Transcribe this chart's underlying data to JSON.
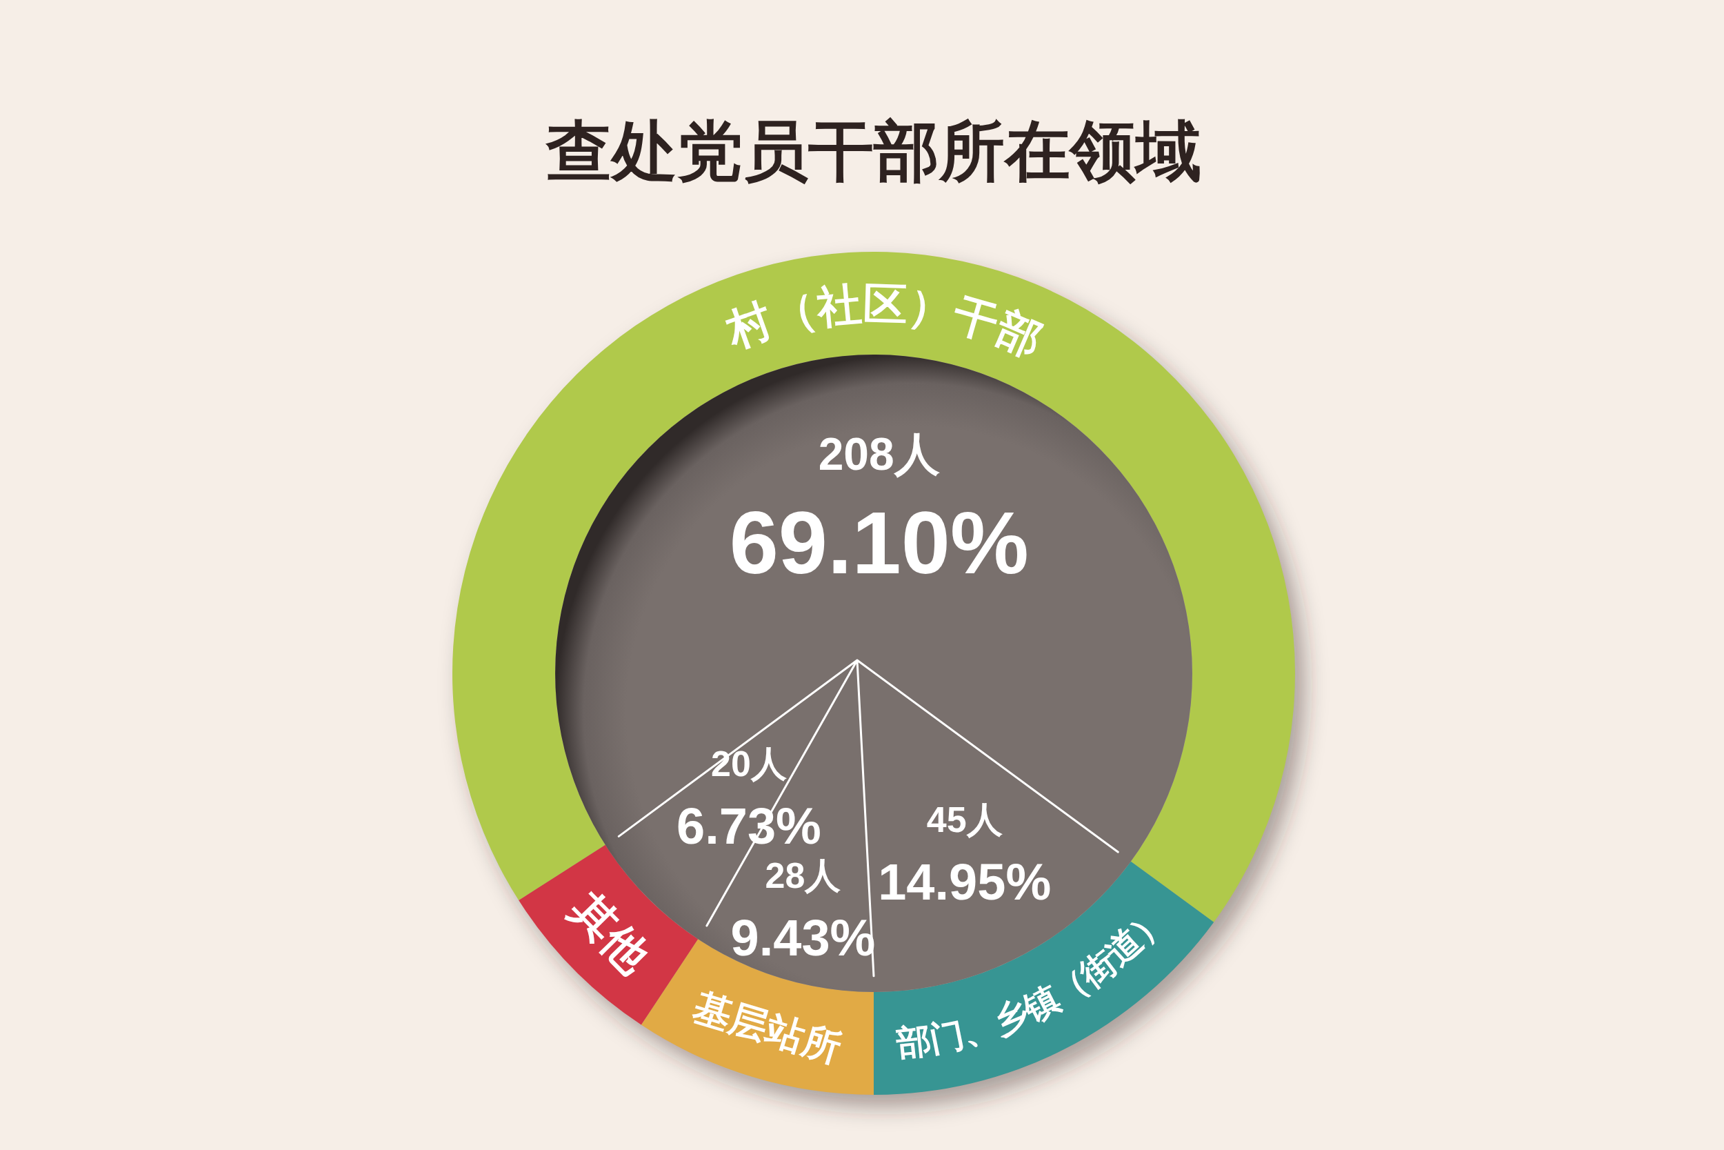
{
  "chart_data": {
    "type": "donut",
    "title": "查处党员干部所在领域",
    "categories": [
      "村（社区）干部",
      "部门、乡镇（街道）",
      "基层站所",
      "其他"
    ],
    "values": [
      208,
      45,
      28,
      20
    ],
    "colors": [
      "#b0c94b",
      "#379593",
      "#e1aa45",
      "#d23645"
    ],
    "value_labels": [
      "208人\n69.10%",
      "45人\n14.95%",
      "28人\n9.43%",
      "20人\n6.73%"
    ]
  }
}
